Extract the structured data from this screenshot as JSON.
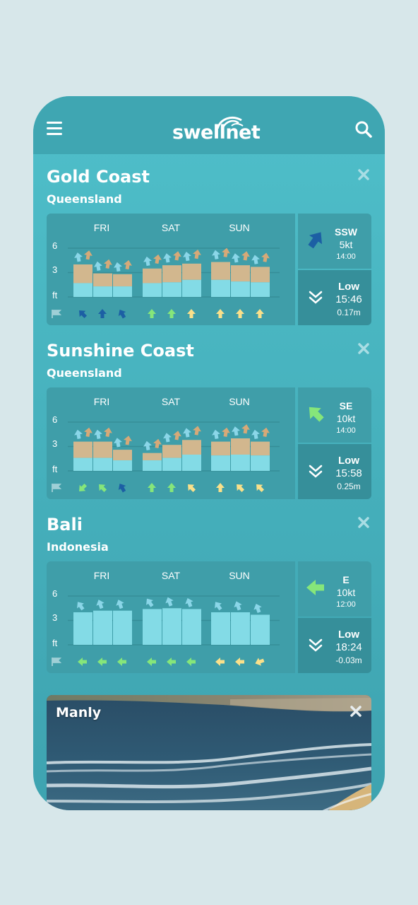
{
  "app": {
    "logo": "swellnet",
    "menu_icon": "hamburger-menu-icon",
    "search_icon": "search-icon"
  },
  "colors": {
    "background": "#d7e7ea",
    "teal": "#45afbb",
    "panel": "#3f9ea9",
    "swell_primary": "#83dbe6",
    "swell_secondary": "#d2b78e",
    "arrow_dark_blue": "#1c5fa4",
    "arrow_light_blue": "#8ad6e8",
    "arrow_tan": "#d6a978",
    "arrow_green": "#86e67a",
    "arrow_yellow": "#fae08a"
  },
  "forecasts": [
    {
      "location": "Gold Coast",
      "region": "Queensland",
      "days": [
        "FRI",
        "SAT",
        "SUN"
      ],
      "y_axis": [
        "6",
        "3",
        "ft"
      ],
      "y_max": 6,
      "swell": [
        {
          "primary": 1.7,
          "secondary": 2.3
        },
        {
          "primary": 1.3,
          "secondary": 1.6
        },
        {
          "primary": 1.3,
          "secondary": 1.5
        },
        {
          "primary": 1.7,
          "secondary": 1.8
        },
        {
          "primary": 1.8,
          "secondary": 2.1
        },
        {
          "primary": 2.1,
          "secondary": 2.0
        },
        {
          "primary": 2.1,
          "secondary": 2.2
        },
        {
          "primary": 1.9,
          "secondary": 2.0
        },
        {
          "primary": 1.8,
          "secondary": 1.9
        }
      ],
      "swell_arrows": [
        [
          "light",
          "tan"
        ],
        [
          "light",
          "tan"
        ],
        [
          "light",
          "tan"
        ],
        [
          "light",
          "tan"
        ],
        [
          "light",
          "tan"
        ],
        [
          "light",
          "tan"
        ],
        [
          "light",
          "tan"
        ],
        [
          "light",
          "tan"
        ],
        [
          "light",
          "tan"
        ]
      ],
      "wind_arrows": [
        {
          "color": "dark",
          "dir": 315
        },
        {
          "color": "dark",
          "dir": 0
        },
        {
          "color": "dark",
          "dir": 330
        },
        {
          "color": "green",
          "dir": 0
        },
        {
          "color": "green",
          "dir": 0
        },
        {
          "color": "yellow",
          "dir": 0
        },
        {
          "color": "yellow",
          "dir": 0
        },
        {
          "color": "yellow",
          "dir": 0
        },
        {
          "color": "yellow",
          "dir": 0
        }
      ],
      "wind": {
        "direction": "SSW",
        "speed": "5kt",
        "time": "14:00",
        "arrow_color": "dark",
        "arrow_dir": 35
      },
      "tide": {
        "label": "Low",
        "time": "15:46",
        "height": "0.17m"
      }
    },
    {
      "location": "Sunshine Coast",
      "region": "Queensland",
      "days": [
        "FRI",
        "SAT",
        "SUN"
      ],
      "y_axis": [
        "6",
        "3",
        "ft"
      ],
      "y_max": 6,
      "swell": [
        {
          "primary": 1.6,
          "secondary": 2.0
        },
        {
          "primary": 1.6,
          "secondary": 2.0
        },
        {
          "primary": 1.3,
          "secondary": 1.3
        },
        {
          "primary": 1.3,
          "secondary": 0.9
        },
        {
          "primary": 1.6,
          "secondary": 1.6
        },
        {
          "primary": 2.0,
          "secondary": 1.8
        },
        {
          "primary": 1.9,
          "secondary": 1.7
        },
        {
          "primary": 2.0,
          "secondary": 2.0
        },
        {
          "primary": 1.9,
          "secondary": 1.7
        }
      ],
      "swell_arrows": [
        [
          "light",
          "tan"
        ],
        [
          "light",
          "tan"
        ],
        [
          "light",
          "tan"
        ],
        [
          "light",
          "tan"
        ],
        [
          "light",
          "tan"
        ],
        [
          "light",
          "tan"
        ],
        [
          "light",
          "tan"
        ],
        [
          "light",
          "tan"
        ],
        [
          "light",
          "tan"
        ]
      ],
      "wind_arrows": [
        {
          "color": "green",
          "dir": 225
        },
        {
          "color": "green",
          "dir": 315
        },
        {
          "color": "dark",
          "dir": 330
        },
        {
          "color": "green",
          "dir": 0
        },
        {
          "color": "green",
          "dir": 0
        },
        {
          "color": "yellow",
          "dir": 315
        },
        {
          "color": "yellow",
          "dir": 0
        },
        {
          "color": "yellow",
          "dir": 315
        },
        {
          "color": "yellow",
          "dir": 315
        }
      ],
      "wind": {
        "direction": "SE",
        "speed": "10kt",
        "time": "14:00",
        "arrow_color": "green",
        "arrow_dir": 315
      },
      "tide": {
        "label": "Low",
        "time": "15:58",
        "height": "0.25m"
      }
    },
    {
      "location": "Bali",
      "region": "Indonesia",
      "days": [
        "FRI",
        "SAT",
        "SUN"
      ],
      "y_axis": [
        "6",
        "3",
        "ft"
      ],
      "y_max": 6,
      "swell": [
        {
          "primary": 4.0,
          "secondary": 0
        },
        {
          "primary": 4.2,
          "secondary": 0
        },
        {
          "primary": 4.2,
          "secondary": 0
        },
        {
          "primary": 4.4,
          "secondary": 0
        },
        {
          "primary": 4.5,
          "secondary": 0
        },
        {
          "primary": 4.4,
          "secondary": 0
        },
        {
          "primary": 4.0,
          "secondary": 0
        },
        {
          "primary": 4.0,
          "secondary": 0
        },
        {
          "primary": 3.7,
          "secondary": 0
        }
      ],
      "swell_arrows": [
        [
          "light"
        ],
        [
          "light"
        ],
        [
          "light"
        ],
        [
          "light"
        ],
        [
          "light"
        ],
        [
          "light"
        ],
        [
          "light"
        ],
        [
          "light"
        ],
        [
          "light"
        ]
      ],
      "wind_arrows": [
        {
          "color": "green",
          "dir": 270
        },
        {
          "color": "green",
          "dir": 270
        },
        {
          "color": "green",
          "dir": 270
        },
        {
          "color": "green",
          "dir": 270
        },
        {
          "color": "green",
          "dir": 270
        },
        {
          "color": "green",
          "dir": 270
        },
        {
          "color": "yellow",
          "dir": 270
        },
        {
          "color": "yellow",
          "dir": 270
        },
        {
          "color": "yellow",
          "dir": 250
        }
      ],
      "wind": {
        "direction": "E",
        "speed": "10kt",
        "time": "12:00",
        "arrow_color": "green",
        "arrow_dir": 270
      },
      "tide": {
        "label": "Low",
        "time": "18:24",
        "height": "-0.03m"
      }
    }
  ],
  "surfcam": {
    "title": "Manly",
    "close_icon": "close-icon"
  }
}
